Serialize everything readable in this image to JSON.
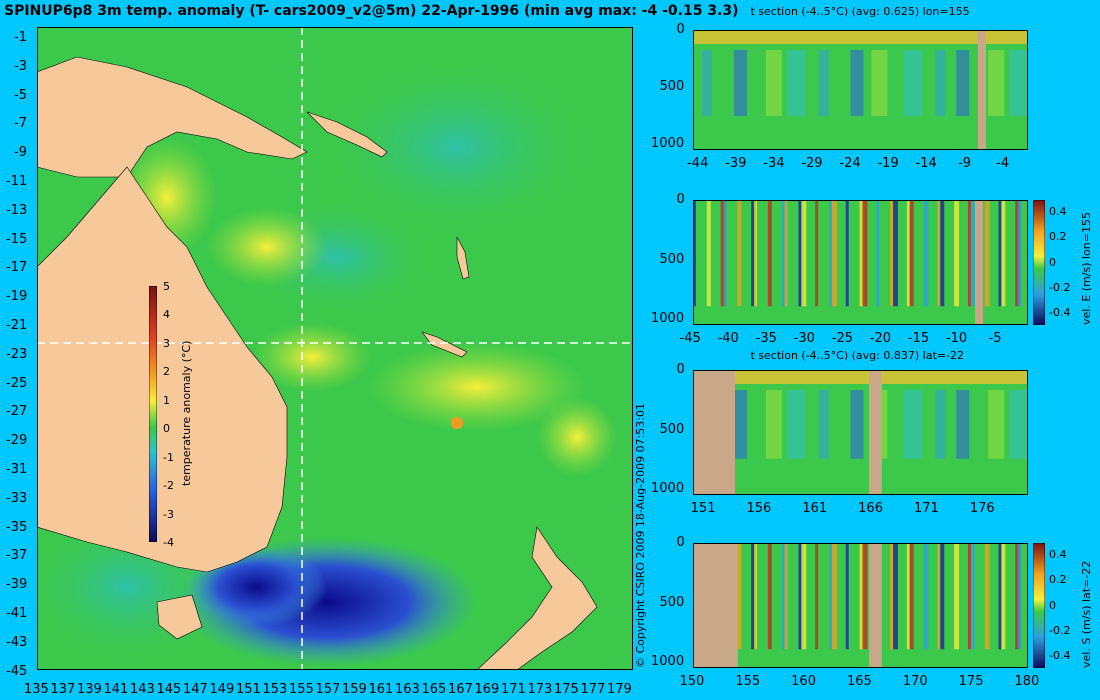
{
  "main_map": {
    "title": "SPINUP6p8 3m temp. anomaly (T- cars2009_v2@5m) 22-Apr-1996 (min avg max: -4 -0.15 3.3)",
    "lat_ticks": [
      "-1",
      "-3",
      "-5",
      "-7",
      "-9",
      "-11",
      "-13",
      "-15",
      "-17",
      "-19",
      "-21",
      "-23",
      "-25",
      "-27",
      "-29",
      "-31",
      "-33",
      "-35",
      "-37",
      "-39",
      "-41",
      "-43",
      "-45"
    ],
    "lon_ticks": [
      "135",
      "137",
      "139",
      "141",
      "143",
      "145",
      "147",
      "149",
      "151",
      "153",
      "155",
      "157",
      "159",
      "161",
      "163",
      "165",
      "167",
      "169",
      "171",
      "173",
      "175",
      "177",
      "179"
    ],
    "colorbar": {
      "label": "temperature anomaly (°C)",
      "ticks": [
        "5",
        "4",
        "3",
        "2",
        "1",
        "0",
        "-1",
        "-2",
        "-3",
        "-4"
      ]
    },
    "copyright": "© Copyright CSIRO 2009   18-Aug-2009 07:53:01",
    "colors": {
      "ocean": "#3cc84a",
      "land": "#f7c99a",
      "cold": "#1a1aa8",
      "warm": "#f6ef3a"
    }
  },
  "chart_data": [
    {
      "type": "heatmap",
      "title": "t section (-4..5°C) (avg: 0.625) lon=155",
      "x_ticks": [
        "-44",
        "-39",
        "-34",
        "-29",
        "-24",
        "-19",
        "-14",
        "-9",
        "-4"
      ],
      "y_ticks": [
        "0",
        "500",
        "1000"
      ],
      "xlim": [
        -45,
        -1
      ],
      "ylim": [
        1050,
        0
      ]
    },
    {
      "type": "heatmap",
      "title": "",
      "x_ticks": [
        "-45",
        "-40",
        "-35",
        "-30",
        "-25",
        "-20",
        "-15",
        "-10",
        "-5"
      ],
      "y_ticks": [
        "0",
        "500",
        "1000"
      ],
      "xlim": [
        -45,
        -1
      ],
      "ylim": [
        1050,
        0
      ],
      "colorbar": {
        "label": "vel. E (m/s) lon=155",
        "ticks": [
          "0.4",
          "0.2",
          "0",
          "-0.2",
          "-0.4"
        ]
      }
    },
    {
      "type": "heatmap",
      "title": "t section (-4..5°C) (avg: 0.837) lat=-22",
      "x_ticks": [
        "151",
        "156",
        "161",
        "166",
        "171",
        "176"
      ],
      "y_ticks": [
        "0",
        "500",
        "1000"
      ],
      "xlim": [
        150,
        180
      ],
      "ylim": [
        1050,
        0
      ]
    },
    {
      "type": "heatmap",
      "title": "",
      "x_ticks": [
        "150",
        "155",
        "160",
        "165",
        "170",
        "175",
        "180"
      ],
      "y_ticks": [
        "0",
        "500",
        "1000"
      ],
      "xlim": [
        150,
        180
      ],
      "ylim": [
        1050,
        0
      ],
      "colorbar": {
        "label": "vel. S (m/s) lat=-22",
        "ticks": [
          "0.4",
          "0.2",
          "0",
          "-0.2",
          "-0.4"
        ]
      }
    }
  ]
}
